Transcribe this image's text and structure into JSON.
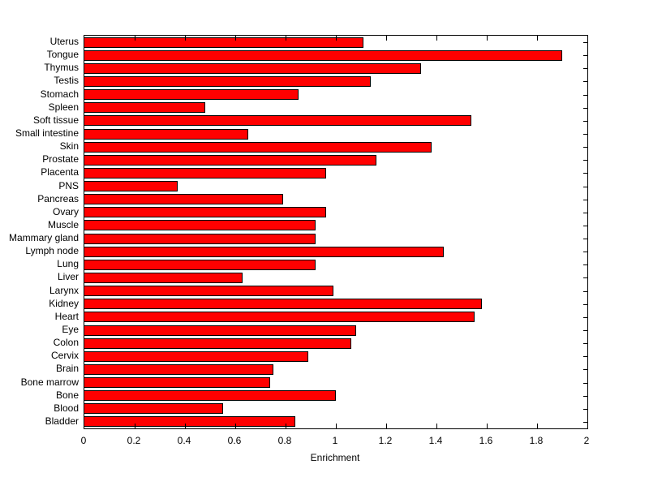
{
  "figure": {
    "background_color": "#ffffff",
    "plot_box_color": "#000000"
  },
  "chart_data": {
    "type": "bar",
    "orientation": "horizontal",
    "title": "",
    "xlabel": "Enrichment",
    "ylabel": "",
    "xlim": [
      0,
      2
    ],
    "xticks": [
      0,
      0.2,
      0.4,
      0.6,
      0.8,
      1,
      1.2,
      1.4,
      1.6,
      1.8,
      2
    ],
    "xtick_labels": [
      "0",
      "0.2",
      "0.4",
      "0.6",
      "0.8",
      "1",
      "1.2",
      "1.4",
      "1.6",
      "1.8",
      "2"
    ],
    "grid": false,
    "legend_position": "none",
    "bar_color": "#ff0000",
    "bar_edge_color": "#000000",
    "categories": [
      "Uterus",
      "Tongue",
      "Thymus",
      "Testis",
      "Stomach",
      "Spleen",
      "Soft tissue",
      "Small intestine",
      "Skin",
      "Prostate",
      "Placenta",
      "PNS",
      "Pancreas",
      "Ovary",
      "Muscle",
      "Mammary gland",
      "Lymph node",
      "Lung",
      "Liver",
      "Larynx",
      "Kidney",
      "Heart",
      "Eye",
      "Colon",
      "Cervix",
      "Brain",
      "Bone marrow",
      "Bone",
      "Blood",
      "Bladder"
    ],
    "values": [
      1.11,
      1.9,
      1.34,
      1.14,
      0.85,
      0.48,
      1.54,
      0.65,
      1.38,
      1.16,
      0.96,
      0.37,
      0.79,
      0.96,
      0.92,
      0.92,
      1.43,
      0.92,
      0.63,
      0.99,
      1.58,
      1.55,
      1.08,
      1.06,
      0.89,
      0.75,
      0.74,
      1.0,
      0.55,
      0.84
    ]
  }
}
